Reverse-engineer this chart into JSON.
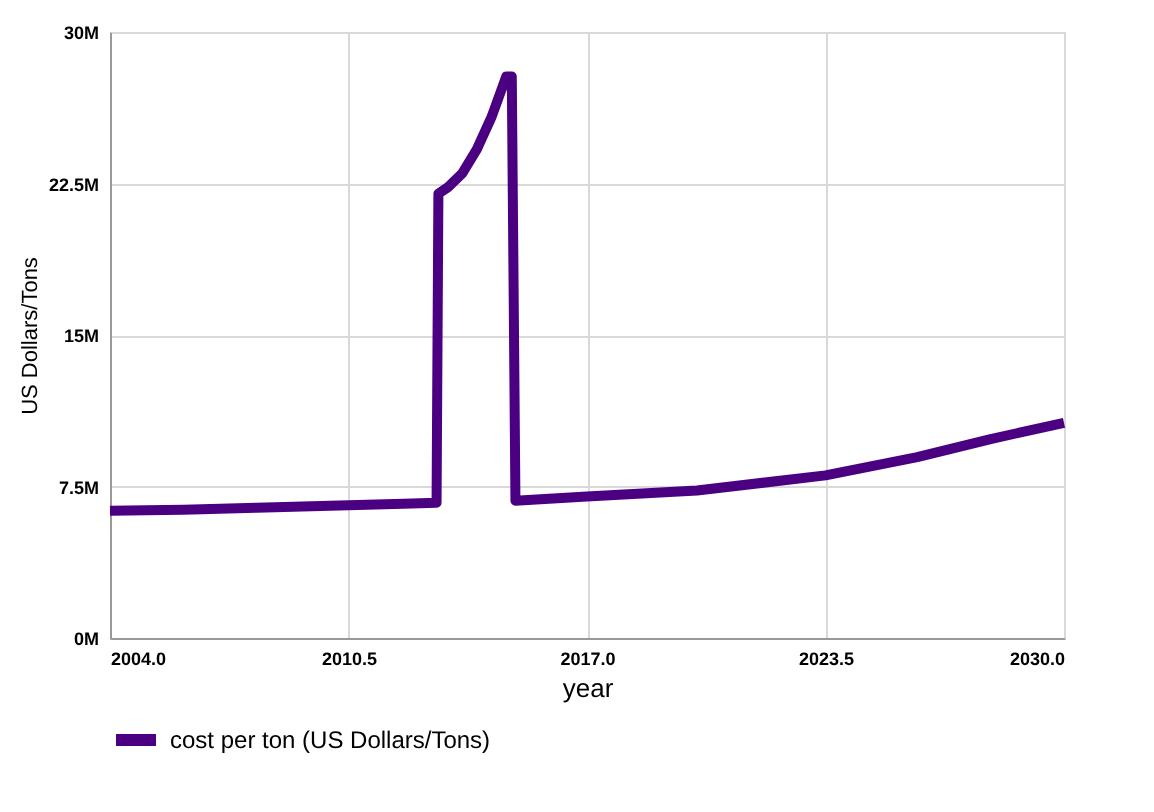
{
  "chart_data": {
    "type": "line",
    "xlabel": "year",
    "ylabel": "US Dollars/Tons",
    "series": [
      {
        "name": "cost per ton (US Dollars/Tons)",
        "color": "#4b0082",
        "x": [
          2004,
          2006,
          2008,
          2010,
          2012,
          2012.9,
          2012.95,
          2013.2,
          2013.6,
          2014.0,
          2014.4,
          2014.8,
          2014.95,
          2015.05,
          2017,
          2020,
          2023.5,
          2026,
          2028,
          2030
        ],
        "values": [
          6.3,
          6.35,
          6.45,
          6.55,
          6.65,
          6.7,
          22.0,
          22.3,
          23.0,
          24.2,
          25.8,
          27.8,
          27.8,
          6.8,
          7.0,
          7.3,
          8.05,
          8.95,
          9.85,
          10.65
        ]
      }
    ],
    "xlim": [
      2004,
      2030
    ],
    "xticks": [
      {
        "value": 2004,
        "label": "2004.0"
      },
      {
        "value": 2010.5,
        "label": "2010.5"
      },
      {
        "value": 2017,
        "label": "2017.0"
      },
      {
        "value": 2023.5,
        "label": "2023.5"
      },
      {
        "value": 2030,
        "label": "2030.0"
      }
    ],
    "ylim": [
      0,
      30
    ],
    "yticks": [
      {
        "value": 0,
        "label": "0M"
      },
      {
        "value": 7.5,
        "label": "7.5M"
      },
      {
        "value": 15,
        "label": "15M"
      },
      {
        "value": 22.5,
        "label": "22.5M"
      },
      {
        "value": 30,
        "label": "30M"
      }
    ],
    "grid": true,
    "legend": "bottom",
    "marker": "none",
    "line_style": "solid"
  }
}
